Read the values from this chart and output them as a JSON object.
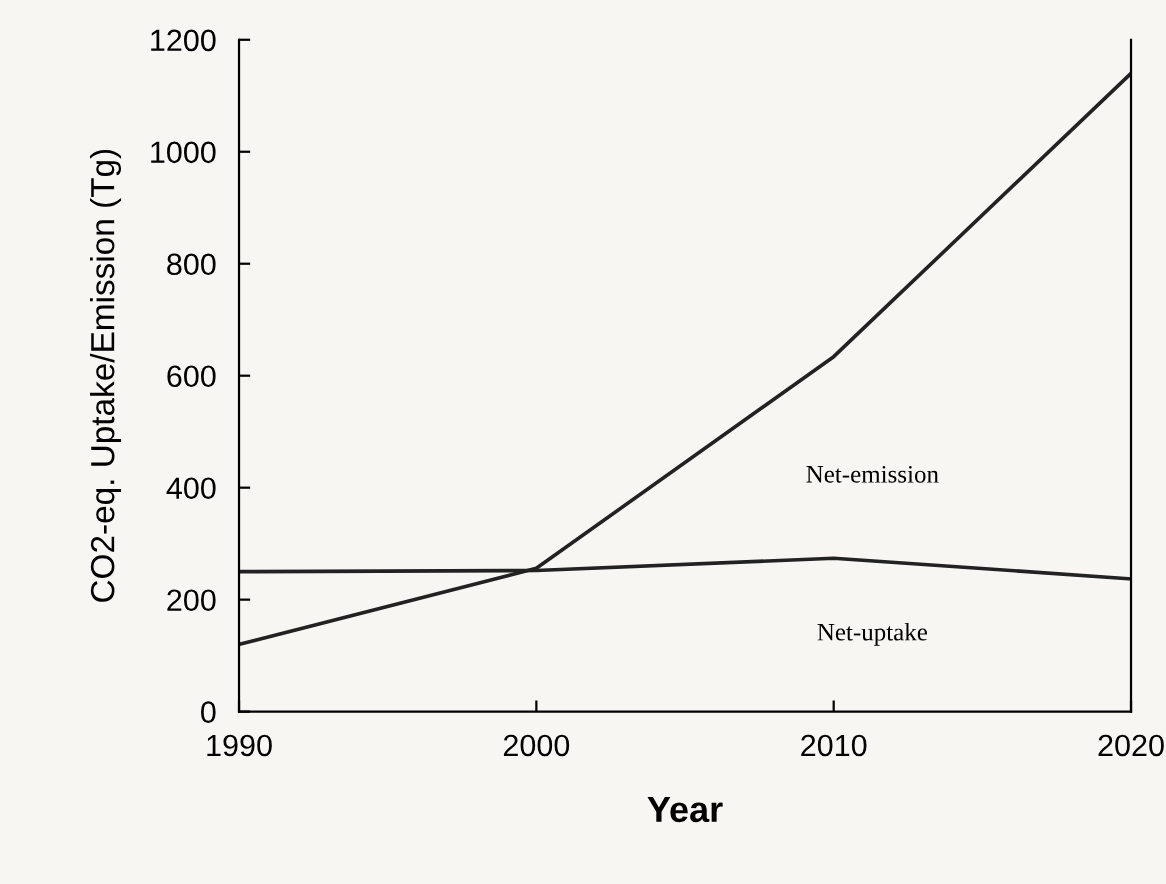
{
  "chart_data": {
    "type": "line",
    "xlabel": "Year",
    "ylabel": "CO2-eq. Uptake/Emission (Tg)",
    "x": [
      1990,
      2000,
      2010,
      2020
    ],
    "series": [
      {
        "color": "#222222",
        "values": [
          120,
          256,
          634,
          1140
        ]
      },
      {
        "color": "#222222",
        "values": [
          250,
          252,
          274,
          237
        ]
      }
    ],
    "xlim": [
      1990,
      2020
    ],
    "ylim": [
      0,
      1200
    ],
    "xticks": [
      1990,
      2000,
      2010,
      2020
    ],
    "yticks": [
      0,
      200,
      400,
      600,
      800,
      1000,
      1200
    ],
    "annotations": [
      "Net-emission",
      "Net-uptake"
    ],
    "grid": false,
    "marker": "none",
    "line_style": "solid"
  }
}
